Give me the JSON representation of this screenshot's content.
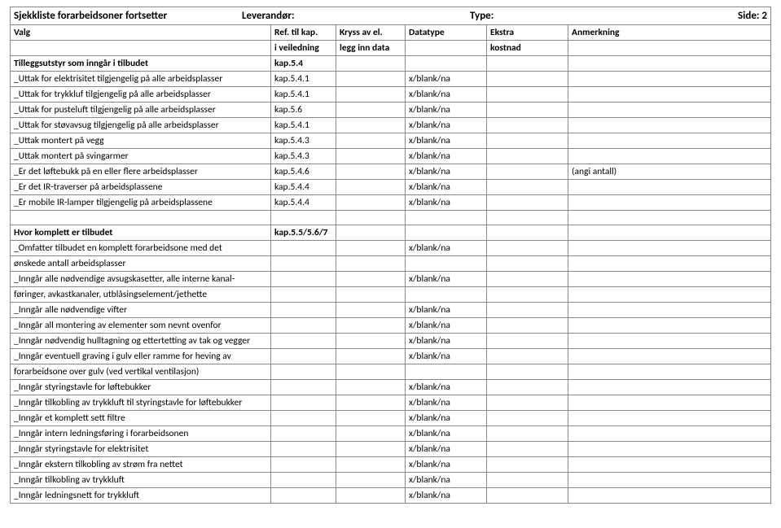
{
  "header": {
    "title": "Sjekkliste forarbeidsoner fortsetter",
    "supplier_label": "Leverandør:",
    "type_label": "Type:",
    "page_label": "Side: 2"
  },
  "columns": {
    "valg": "Valg",
    "ref1": "Ref. til kap.",
    "ref2": "i veiledning",
    "kryss1": "Kryss av el.",
    "kryss2": "legg inn data",
    "datatype": "Datatype",
    "ekstra1": "Ekstra",
    "ekstra2": "kostnad",
    "anm": "Anmerkning"
  },
  "section1": {
    "heading": "Tilleggsutstyr som inngår i tilbudet",
    "heading_ref": "kap.5.4",
    "rows": [
      {
        "v": "_Uttak for  elektrisitet tilgjengelig på alle arbeidsplasser",
        "r": "kap.5.4.1",
        "d": "x/blank/na",
        "a": ""
      },
      {
        "v": "_Uttak for trykkluf tilgjengelig på alle arbeidsplasser",
        "r": "kap.5.4.1",
        "d": "x/blank/na",
        "a": ""
      },
      {
        "v": "_Uttak for pusteluft tilgjengelig på alle arbeidsplasser",
        "r": "kap.5.6",
        "d": "x/blank/na",
        "a": ""
      },
      {
        "v": "_Uttak for  støvavsug tilgjengelig på alle arbeidsplasser",
        "r": "kap.5.4.1",
        "d": "x/blank/na",
        "a": ""
      },
      {
        "v": "_Uttak montert på vegg",
        "r": "kap.5.4.3",
        "d": "x/blank/na",
        "a": ""
      },
      {
        "v": "_Uttak montert på svingarmer",
        "r": "kap.5.4.3",
        "d": "x/blank/na",
        "a": ""
      },
      {
        "v": "_Er det løftebukk på en eller flere arbeidsplasser",
        "r": "kap.5.4.6",
        "d": "x/blank/na",
        "a": "(angi antall)"
      },
      {
        "v": "_Er det IR-traverser på arbeidsplassene",
        "r": "kap.5.4.4",
        "d": "x/blank/na",
        "a": ""
      },
      {
        "v": "_Er mobile IR-lamper tilgjengelig på arbeidsplassene",
        "r": "kap.5.4.4",
        "d": "x/blank/na",
        "a": ""
      }
    ]
  },
  "section2": {
    "heading": "Hvor komplett er tilbudet",
    "heading_ref": "kap.5.5/5.6/7",
    "rows": [
      {
        "v": "_Omfatter tilbudet en komplett forarbeidsone med det",
        "r": "",
        "d": "x/blank/na",
        "a": ""
      },
      {
        "v": "ønskede antall arbeidsplasser",
        "r": "",
        "d": "",
        "a": ""
      },
      {
        "v": "_Inngår alle nødvendige avsugskasetter, alle interne kanal-",
        "r": "",
        "d": "x/blank/na",
        "a": ""
      },
      {
        "v": "føringer, avkastkanaler, utblåsingselement/jethette",
        "r": "",
        "d": "",
        "a": ""
      },
      {
        "v": "_Inngår alle nødvendige vifter",
        "r": "",
        "d": "x/blank/na",
        "a": ""
      },
      {
        "v": "_Inngår all  montering av elementer som nevnt ovenfor",
        "r": "",
        "d": "x/blank/na",
        "a": ""
      },
      {
        "v": "_Inngår nødvendig hulltagning og ettertetting av tak og vegger",
        "r": "",
        "d": "x/blank/na",
        "a": ""
      },
      {
        "v": "_Inngår eventuell graving i gulv eller ramme for heving av",
        "r": "",
        "d": "x/blank/na",
        "a": ""
      },
      {
        "v": " forarbeidsone over gulv (ved vertikal ventilasjon)",
        "r": "",
        "d": "",
        "a": ""
      },
      {
        "v": "_Inngår styringstavle for løftebukker",
        "r": "",
        "d": "x/blank/na",
        "a": ""
      },
      {
        "v": "_Inngår tilkobling av trykkluft til styringstavle for løftebukker",
        "r": "",
        "d": "x/blank/na",
        "a": ""
      },
      {
        "v": "_Inngår et komplett sett filtre",
        "r": "",
        "d": "x/blank/na",
        "a": ""
      },
      {
        "v": "_Inngår intern ledningsføring i forarbeidsonen",
        "r": "",
        "d": "x/blank/na",
        "a": ""
      },
      {
        "v": "_Inngår styringstavle for elektrisitet",
        "r": "",
        "d": "x/blank/na",
        "a": ""
      },
      {
        "v": "_Inngår ekstern tilkobling av strøm fra nettet",
        "r": "",
        "d": "x/blank/na",
        "a": ""
      },
      {
        "v": "_Inngår tilkobling av trykkluft",
        "r": "",
        "d": "x/blank/na",
        "a": ""
      },
      {
        "v": "_Inngår ledningsnett for trykkluft",
        "r": "",
        "d": "x/blank/na",
        "a": ""
      }
    ]
  }
}
